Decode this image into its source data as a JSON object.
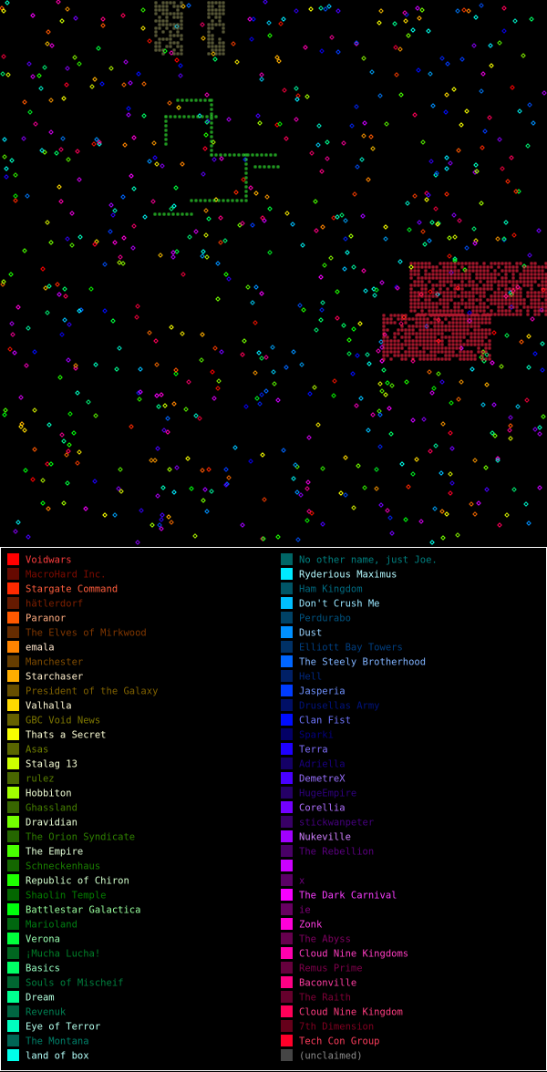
{
  "legend": {
    "items": [
      {
        "name": "Voidwars",
        "color": "hsl(0,100%,50%)",
        "text_color": "hsl(0,100%,62%)"
      },
      {
        "name": "MacroHard Inc.",
        "color": "hsl(5,100%,20%)",
        "text_color": "hsl(5,100%,25%)"
      },
      {
        "name": "Stargate Command",
        "color": "hsl(10,100%,50%)",
        "text_color": "hsl(10,100%,62%)"
      },
      {
        "name": "hätlerdorf",
        "color": "hsl(15,100%,20%)",
        "text_color": "hsl(15,100%,25%)"
      },
      {
        "name": "Paranor",
        "color": "hsl(21,100%,50%)",
        "text_color": "hsl(21,100%,75%)"
      },
      {
        "name": "The Elves of Mirkwood",
        "color": "hsl(26,100%,20%)",
        "text_color": "hsl(26,100%,25%)"
      },
      {
        "name": "emala",
        "color": "hsl(31,100%,50%)",
        "text_color": "hsl(31,100%,90%)"
      },
      {
        "name": "Manchester",
        "color": "hsl(36,100%,20%)",
        "text_color": "hsl(36,100%,25%)"
      },
      {
        "name": "Starchaser",
        "color": "hsl(41,100%,50%)",
        "text_color": "hsl(41,100%,90%)"
      },
      {
        "name": "President of the Galaxy",
        "color": "hsl(46,100%,20%)",
        "text_color": "hsl(46,100%,25%)"
      },
      {
        "name": "Valhalla",
        "color": "hsl(51,100%,50%)",
        "text_color": "hsl(51,100%,92%)"
      },
      {
        "name": "GBC Void News",
        "color": "hsl(57,100%,20%)",
        "text_color": "hsl(57,100%,25%)"
      },
      {
        "name": "Thats a Secret",
        "color": "hsl(62,100%,50%)",
        "text_color": "hsl(62,100%,92%)"
      },
      {
        "name": "Asas",
        "color": "hsl(67,100%,20%)",
        "text_color": "hsl(67,100%,25%)"
      },
      {
        "name": "Stalag 13",
        "color": "hsl(72,100%,50%)",
        "text_color": "hsl(72,100%,92%)"
      },
      {
        "name": "rulez",
        "color": "hsl(77,100%,20%)",
        "text_color": "hsl(77,100%,25%)"
      },
      {
        "name": "Hobbiton",
        "color": "hsl(82,100%,50%)",
        "text_color": "hsl(82,100%,92%)"
      },
      {
        "name": "Ghassland",
        "color": "hsl(87,100%,20%)",
        "text_color": "hsl(87,100%,25%)"
      },
      {
        "name": "Dravidian",
        "color": "hsl(93,100%,50%)",
        "text_color": "hsl(93,100%,92%)"
      },
      {
        "name": "The Orion Syndicate",
        "color": "hsl(98,100%,20%)",
        "text_color": "hsl(98,100%,25%)"
      },
      {
        "name": "The Empire",
        "color": "hsl(103,100%,50%)",
        "text_color": "hsl(103,100%,92%)"
      },
      {
        "name": "Schneckenhaus",
        "color": "hsl(108,100%,20%)",
        "text_color": "hsl(108,100%,25%)"
      },
      {
        "name": "Republic of Chiron",
        "color": "hsl(113,100%,50%)",
        "text_color": "hsl(113,100%,90%)"
      },
      {
        "name": "Shaolin Temple",
        "color": "hsl(118,100%,20%)",
        "text_color": "hsl(118,100%,25%)"
      },
      {
        "name": "Battlestar Galactica",
        "color": "hsl(123,100%,50%)",
        "text_color": "hsl(123,100%,80%)"
      },
      {
        "name": "Marioland",
        "color": "hsl(129,100%,20%)",
        "text_color": "hsl(129,100%,25%)"
      },
      {
        "name": "Verona",
        "color": "hsl(134,100%,50%)",
        "text_color": "hsl(134,100%,80%)"
      },
      {
        "name": "¡Mucha Lucha!",
        "color": "hsl(139,100%,20%)",
        "text_color": "hsl(139,100%,25%)"
      },
      {
        "name": "Basics",
        "color": "hsl(144,100%,50%)",
        "text_color": "hsl(144,100%,80%)"
      },
      {
        "name": "Souls of Mischeif",
        "color": "hsl(149,100%,20%)",
        "text_color": "hsl(149,100%,25%)"
      },
      {
        "name": "Dream",
        "color": "hsl(154,100%,50%)",
        "text_color": "hsl(154,100%,85%)"
      },
      {
        "name": "Revenuk",
        "color": "hsl(159,100%,20%)",
        "text_color": "hsl(159,100%,25%)"
      },
      {
        "name": "Eye of Terror",
        "color": "hsl(165,100%,50%)",
        "text_color": "hsl(165,100%,85%)"
      },
      {
        "name": "The Montana",
        "color": "hsl(170,100%,20%)",
        "text_color": "hsl(170,100%,25%)"
      },
      {
        "name": "land of box",
        "color": "hsl(175,100%,50%)",
        "text_color": "hsl(175,100%,85%)"
      },
      {
        "name": "No other name, just Joe.",
        "color": "hsl(180,100%,20%)",
        "text_color": "hsl(180,100%,25%)"
      },
      {
        "name": "Ryderious Maximus",
        "color": "hsl(185,100%,50%)",
        "text_color": "hsl(185,100%,85%)"
      },
      {
        "name": "Ham Kingdom",
        "color": "hsl(190,100%,20%)",
        "text_color": "hsl(190,100%,25%)"
      },
      {
        "name": "Don't Crush Me",
        "color": "hsl(195,100%,50%)",
        "text_color": "hsl(195,100%,80%)"
      },
      {
        "name": "Perdurabo",
        "color": "hsl(201,100%,20%)",
        "text_color": "hsl(201,100%,25%)"
      },
      {
        "name": "Dust",
        "color": "hsl(206,100%,50%)",
        "text_color": "hsl(206,100%,80%)"
      },
      {
        "name": "Elliott Bay Towers",
        "color": "hsl(211,100%,20%)",
        "text_color": "hsl(211,100%,25%)"
      },
      {
        "name": "The Steely Brotherhood",
        "color": "hsl(216,100%,50%)",
        "text_color": "hsl(216,100%,75%)"
      },
      {
        "name": "Hell",
        "color": "hsl(221,100%,20%)",
        "text_color": "hsl(221,100%,25%)"
      },
      {
        "name": "Jasperia",
        "color": "hsl(226,100%,50%)",
        "text_color": "hsl(226,100%,72%)"
      },
      {
        "name": "Drusellas Army",
        "color": "hsl(231,100%,20%)",
        "text_color": "hsl(231,100%,25%)"
      },
      {
        "name": "Clan Fist",
        "color": "hsl(237,100%,50%)",
        "text_color": "hsl(237,100%,72%)"
      },
      {
        "name": "Sparki",
        "color": "hsl(242,100%,20%)",
        "text_color": "hsl(242,100%,25%)"
      },
      {
        "name": "Terra",
        "color": "hsl(247,100%,50%)",
        "text_color": "hsl(247,100%,72%)"
      },
      {
        "name": "Adriella",
        "color": "hsl(252,100%,20%)",
        "text_color": "hsl(252,100%,25%)"
      },
      {
        "name": "DemetreX",
        "color": "hsl(257,100%,50%)",
        "text_color": "hsl(257,100%,72%)"
      },
      {
        "name": "HugeEmpire",
        "color": "hsl(262,100%,20%)",
        "text_color": "hsl(262,100%,25%)"
      },
      {
        "name": "Corellia",
        "color": "hsl(267,100%,50%)",
        "text_color": "hsl(267,100%,72%)"
      },
      {
        "name": "stickwanpeter",
        "color": "hsl(273,100%,20%)",
        "text_color": "hsl(273,100%,25%)"
      },
      {
        "name": "Nukeville",
        "color": "hsl(278,100%,50%)",
        "text_color": "hsl(278,100%,75%)"
      },
      {
        "name": "The Rebellion",
        "color": "hsl(283,100%,20%)",
        "text_color": "hsl(283,100%,25%)"
      },
      {
        "color": "hsl(288,100%,50%)"
      },
      {
        "name": "x",
        "color": "hsl(293,100%,20%)",
        "text_color": "hsl(293,100%,25%)"
      },
      {
        "name": "The Dark Carnival",
        "color": "hsl(298,100%,50%)",
        "text_color": "hsl(298,100%,62%)"
      },
      {
        "name": "ie",
        "color": "hsl(303,100%,20%)",
        "text_color": "hsl(303,100%,25%)"
      },
      {
        "name": "Zonk",
        "color": "hsl(309,100%,50%)",
        "text_color": "hsl(309,100%,62%)"
      },
      {
        "name": "The Abyss",
        "color": "hsl(314,100%,20%)",
        "text_color": "hsl(314,100%,25%)"
      },
      {
        "name": "Cloud Nine Kingdoms",
        "color": "hsl(319,100%,50%)",
        "text_color": "hsl(319,100%,62%)"
      },
      {
        "name": "Remus Prime",
        "color": "hsl(324,100%,20%)",
        "text_color": "hsl(324,100%,25%)"
      },
      {
        "name": "Baconville",
        "color": "hsl(329,100%,50%)",
        "text_color": "hsl(329,100%,62%)"
      },
      {
        "name": "The Raith",
        "color": "hsl(334,100%,20%)",
        "text_color": "hsl(334,100%,25%)"
      },
      {
        "name": "Cloud Nine Kingdom",
        "color": "hsl(339,100%,50%)",
        "text_color": "hsl(339,100%,62%)"
      },
      {
        "name": "7th Dimension",
        "color": "hsl(345,100%,20%)",
        "text_color": "hsl(345,100%,25%)"
      },
      {
        "name": "Tech Con Group",
        "color": "hsl(350,100%,50%)",
        "text_color": "hsl(350,100%,62%)"
      },
      {
        "name": "(unclaimed)",
        "color": "hsl(0,0%,27%)",
        "text_color": "hsl(0,0%,55%)"
      }
    ]
  }
}
